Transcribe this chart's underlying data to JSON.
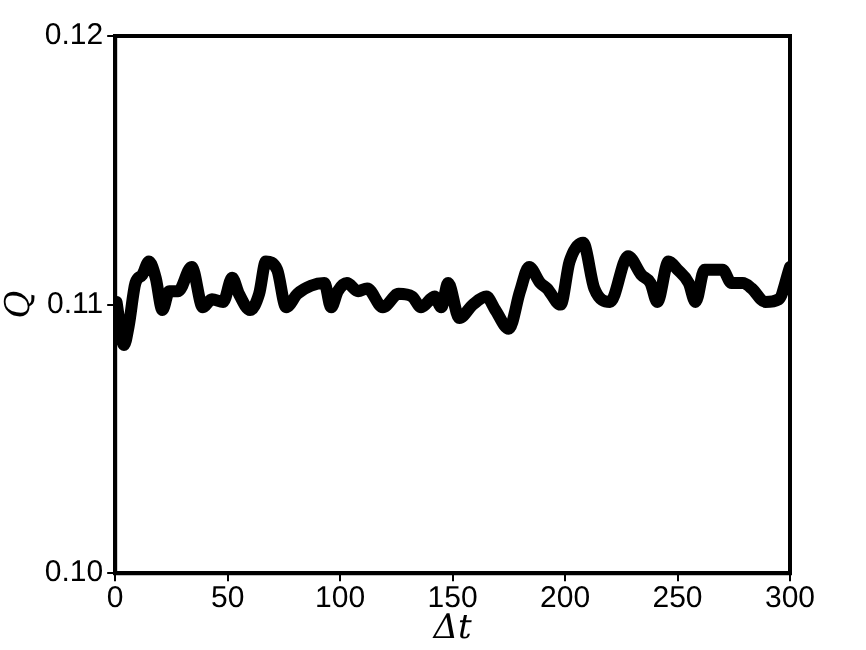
{
  "chart_data": {
    "type": "line",
    "xlabel": "Δt",
    "ylabel": "Q",
    "xlim": [
      0,
      300
    ],
    "xticks": [
      0,
      50,
      100,
      150,
      200,
      250,
      300
    ],
    "ylim": [
      0.1,
      0.12
    ],
    "yticks": [
      {
        "value": 0.1,
        "label": "0.10"
      },
      {
        "value": 0.11,
        "label": "0.11"
      },
      {
        "value": 0.12,
        "label": "0.12"
      }
    ],
    "grid": false,
    "legend": false,
    "marker": "none",
    "line_style": "solid",
    "series": [
      {
        "color": "#000000",
        "x": [
          0.6,
          3.9,
          6,
          9,
          12,
          15,
          18,
          21,
          24,
          28,
          34,
          39,
          43,
          48,
          52,
          55,
          60,
          64,
          67,
          72,
          76,
          81,
          87,
          93,
          96,
          99,
          103,
          108,
          112,
          119,
          126,
          132,
          136,
          142,
          145,
          148,
          153,
          159,
          165,
          169,
          175,
          180,
          184,
          189,
          192,
          198,
          202,
          208,
          213,
          220,
          228,
          234,
          238,
          241,
          246,
          250,
          255,
          258,
          262,
          270,
          274,
          279,
          283,
          289,
          295,
          300
        ],
        "values": [
          0.1101,
          0.1085,
          0.1092,
          0.1108,
          0.1111,
          0.1116,
          0.111,
          0.1098,
          0.1105,
          0.1105,
          0.1114,
          0.1099,
          0.1102,
          0.1101,
          0.111,
          0.1104,
          0.1098,
          0.1104,
          0.1116,
          0.1113,
          0.1099,
          0.1104,
          0.1107,
          0.1108,
          0.1099,
          0.1105,
          0.1108,
          0.1105,
          0.1106,
          0.1099,
          0.1104,
          0.1103,
          0.1099,
          0.1103,
          0.1099,
          0.1108,
          0.1095,
          0.11,
          0.1103,
          0.1098,
          0.1091,
          0.1105,
          0.1114,
          0.1108,
          0.1106,
          0.11,
          0.1116,
          0.1123,
          0.1106,
          0.1101,
          0.1118,
          0.1111,
          0.1108,
          0.1101,
          0.1116,
          0.1113,
          0.1108,
          0.1101,
          0.1113,
          0.1113,
          0.1108,
          0.1108,
          0.1106,
          0.1101,
          0.1102,
          0.1114
        ]
      }
    ]
  }
}
